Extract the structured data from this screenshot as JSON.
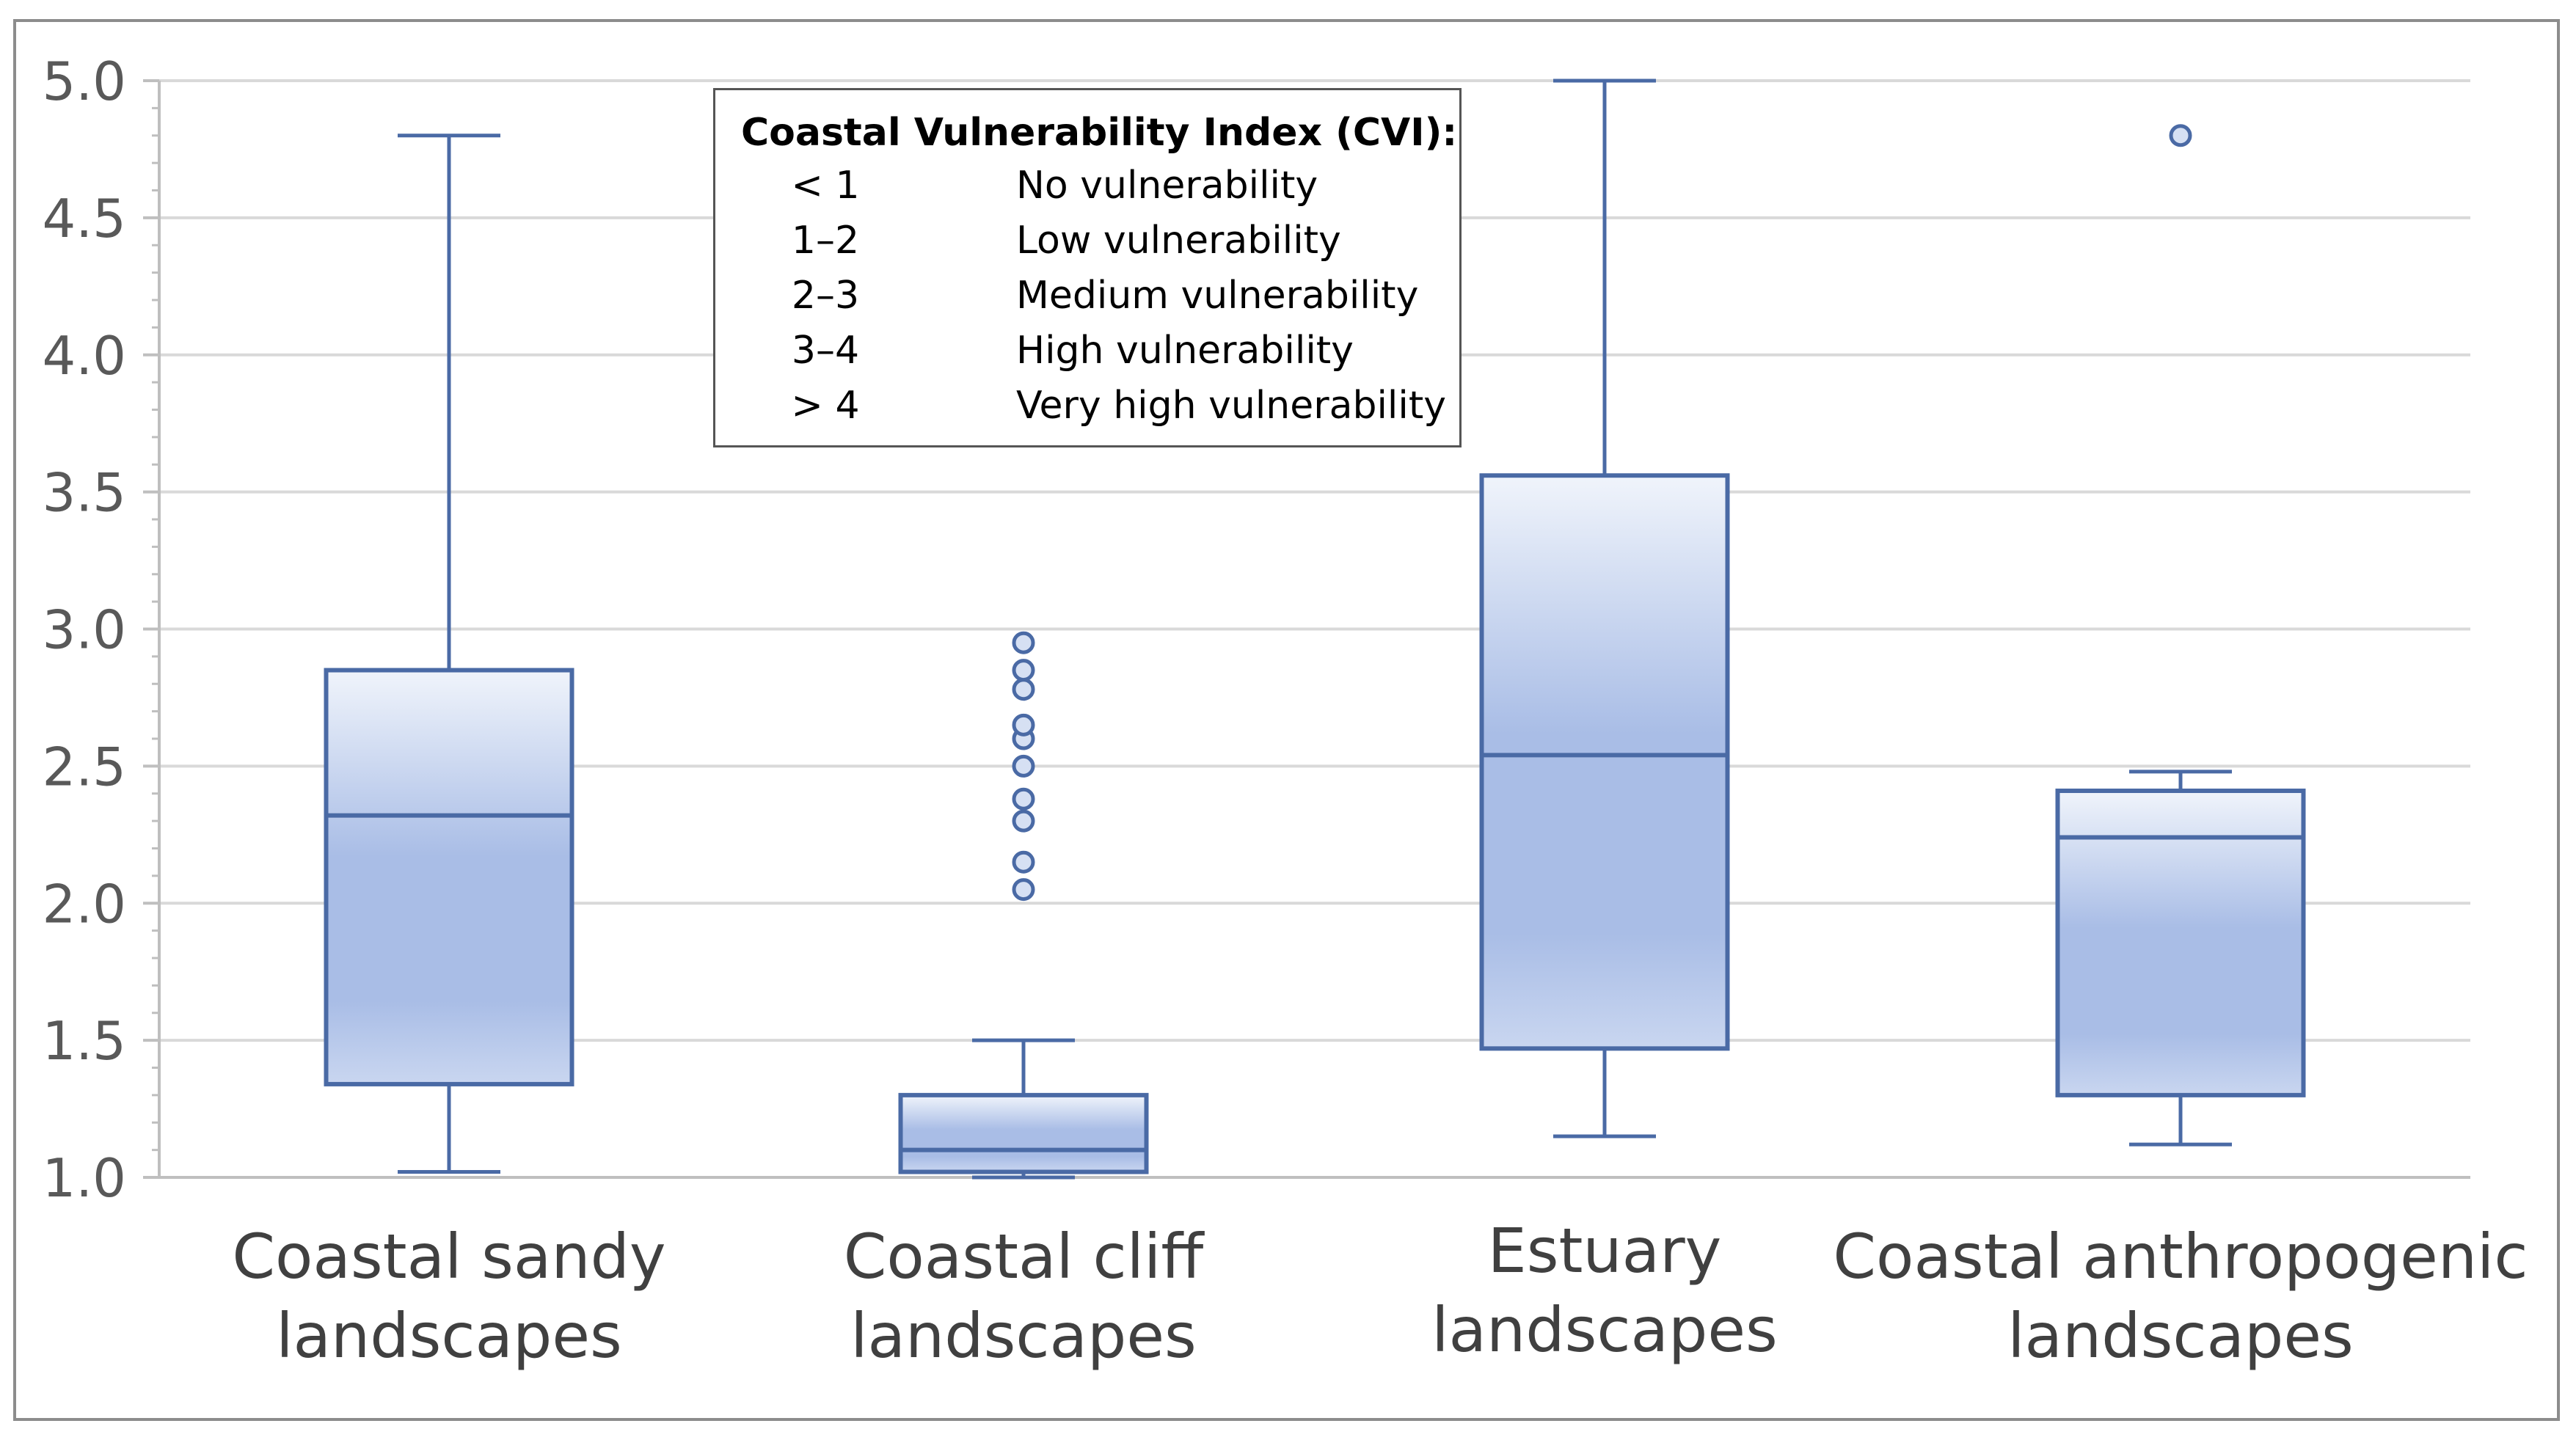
{
  "chart_data": {
    "type": "boxplot",
    "title": "",
    "xlabel": "",
    "ylabel": "",
    "ylim": [
      1.0,
      5.0
    ],
    "yticks": [
      "1.0",
      "1.5",
      "2.0",
      "2.5",
      "3.0",
      "3.5",
      "4.0",
      "4.5",
      "5.0"
    ],
    "grid": true,
    "colors": {
      "box_stroke": "#4a6aa5",
      "box_fill_light": "#f0f4fb",
      "box_fill_dark": "#a9bde6",
      "grid": "#d9d9d9",
      "axis": "#bfbfbf"
    },
    "categories": [
      {
        "label_line1": "Coastal sandy",
        "label_line2": "landscapes",
        "whisker_low": 1.02,
        "q1": 1.34,
        "median": 2.32,
        "q3": 2.85,
        "whisker_high": 4.8,
        "outliers": []
      },
      {
        "label_line1": "Coastal cliff",
        "label_line2": "landscapes",
        "whisker_low": 1.0,
        "q1": 1.02,
        "median": 1.1,
        "q3": 1.3,
        "whisker_high": 1.5,
        "outliers": [
          2.05,
          2.15,
          2.3,
          2.38,
          2.5,
          2.6,
          2.65,
          2.78,
          2.85,
          2.95
        ]
      },
      {
        "label_line1": "Estuary",
        "label_line2": "landscapes",
        "whisker_low": 1.15,
        "q1": 1.47,
        "median": 2.54,
        "q3": 3.56,
        "whisker_high": 5.0,
        "outliers": []
      },
      {
        "label_line1": "Coastal anthropogenic",
        "label_line2": "landscapes",
        "whisker_low": 1.12,
        "q1": 1.3,
        "median": 2.24,
        "q3": 2.41,
        "whisker_high": 2.48,
        "outliers": [
          4.8
        ]
      }
    ]
  },
  "legend": {
    "title": "Coastal Vulnerability Index (CVI):",
    "rows": [
      {
        "range": "< 1",
        "desc": "No vulnerability"
      },
      {
        "range": "1–2",
        "desc": "Low vulnerability"
      },
      {
        "range": "2–3",
        "desc": "Medium vulnerability"
      },
      {
        "range": "3–4",
        "desc": "High vulnerability"
      },
      {
        "range": "> 4",
        "desc": "Very high vulnerability"
      }
    ]
  }
}
